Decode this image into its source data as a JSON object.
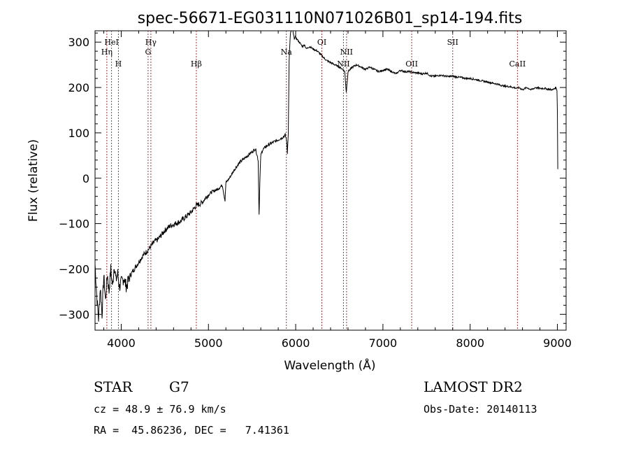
{
  "chart_data": {
    "type": "line",
    "title": "spec-56671-EG031110N071026B01_sp14-194.fits",
    "xlabel": "Wavelength (Å)",
    "ylabel": "Flux (relative)",
    "xlim": [
      3700,
      9100
    ],
    "ylim": [
      -335,
      325
    ],
    "xticks": [
      4000,
      5000,
      6000,
      7000,
      8000,
      9000
    ],
    "yticks": [
      -300,
      -200,
      -100,
      0,
      100,
      200,
      300
    ],
    "grid": false,
    "series_color": "#000000",
    "line_marker_color": "#b03030",
    "series": [
      {
        "x": [
          3700,
          3720,
          3740,
          3760,
          3780,
          3800,
          3820,
          3840,
          3860,
          3880,
          3900,
          3920,
          3940,
          3960,
          3980,
          4000,
          4030,
          4060,
          4100,
          4150,
          4200,
          4250,
          4300,
          4340,
          4380,
          4420,
          4460,
          4500,
          4560,
          4620,
          4680,
          4740,
          4800,
          4860,
          4920,
          4980,
          5040,
          5100,
          5160,
          5190,
          5200,
          5240,
          5300,
          5360,
          5420,
          5480,
          5540,
          5570,
          5580,
          5590,
          5600,
          5620,
          5660,
          5700,
          5750,
          5800,
          5850,
          5880,
          5895,
          5905,
          5915,
          5925,
          5940,
          5960,
          5980,
          6000,
          6040,
          6080,
          6100,
          6120,
          6140,
          6160,
          6200,
          6250,
          6300,
          6350,
          6400,
          6450,
          6500,
          6540,
          6562,
          6580,
          6600,
          6650,
          6700,
          6750,
          6800,
          6850,
          6900,
          6950,
          7000,
          7050,
          7100,
          7150,
          7200,
          7250,
          7300,
          7350,
          7400,
          7450,
          7500,
          7550,
          7600,
          7650,
          7700,
          7750,
          7800,
          7850,
          7900,
          7950,
          8000,
          8050,
          8100,
          8150,
          8200,
          8250,
          8300,
          8350,
          8400,
          8450,
          8500,
          8540,
          8560,
          8600,
          8650,
          8700,
          8750,
          8800,
          8850,
          8900,
          8950,
          8980,
          8995,
          9000,
          9005
        ],
        "y": [
          -190,
          -260,
          -310,
          -240,
          -300,
          -215,
          -270,
          -210,
          -250,
          -200,
          -240,
          -190,
          -225,
          -210,
          -240,
          -230,
          -220,
          -240,
          -215,
          -200,
          -185,
          -170,
          -160,
          -150,
          -140,
          -135,
          -125,
          -115,
          -105,
          -100,
          -95,
          -85,
          -75,
          -60,
          -55,
          -40,
          -30,
          -25,
          -15,
          -50,
          -10,
          0,
          20,
          35,
          45,
          55,
          65,
          40,
          -80,
          -5,
          50,
          62,
          70,
          75,
          80,
          85,
          90,
          95,
          85,
          55,
          100,
          260,
          320,
          330,
          310,
          310,
          300,
          290,
          295,
          285,
          288,
          290,
          285,
          280,
          270,
          260,
          255,
          250,
          245,
          240,
          235,
          190,
          235,
          245,
          250,
          245,
          240,
          245,
          240,
          235,
          238,
          240,
          235,
          230,
          238,
          235,
          235,
          233,
          232,
          230,
          232,
          225,
          225,
          227,
          226,
          224,
          225,
          223,
          222,
          220,
          220,
          218,
          216,
          214,
          212,
          210,
          208,
          205,
          203,
          202,
          200,
          198,
          200,
          195,
          200,
          195,
          200,
          198,
          198,
          196,
          195,
          200,
          195,
          150,
          20
        ]
      }
    ],
    "spectral_lines": [
      {
        "label": "HeI",
        "x": 3889
      },
      {
        "label": "Hη",
        "x": 3835
      },
      {
        "label": "H",
        "x": 3968
      },
      {
        "label": "Hγ",
        "x": 4340
      },
      {
        "label": "G",
        "x": 4308
      },
      {
        "label": "Hβ",
        "x": 4861
      },
      {
        "label": "Na",
        "x": 5893
      },
      {
        "label": "OI",
        "x": 6300
      },
      {
        "label": "NII",
        "x": 6583
      },
      {
        "label": "NII",
        "x": 6548
      },
      {
        "label": "OII",
        "x": 7330
      },
      {
        "label": "SII",
        "x": 7800
      },
      {
        "label": "CaII",
        "x": 8542
      }
    ]
  },
  "info": {
    "object_type": "STAR",
    "subclass": "G7",
    "survey": "LAMOST DR2",
    "redshift": "cz = 48.9 ± 76.9 km/s",
    "obs_date": "Obs-Date: 20140113",
    "coords": "RA =  45.86236, DEC =   7.41361"
  }
}
